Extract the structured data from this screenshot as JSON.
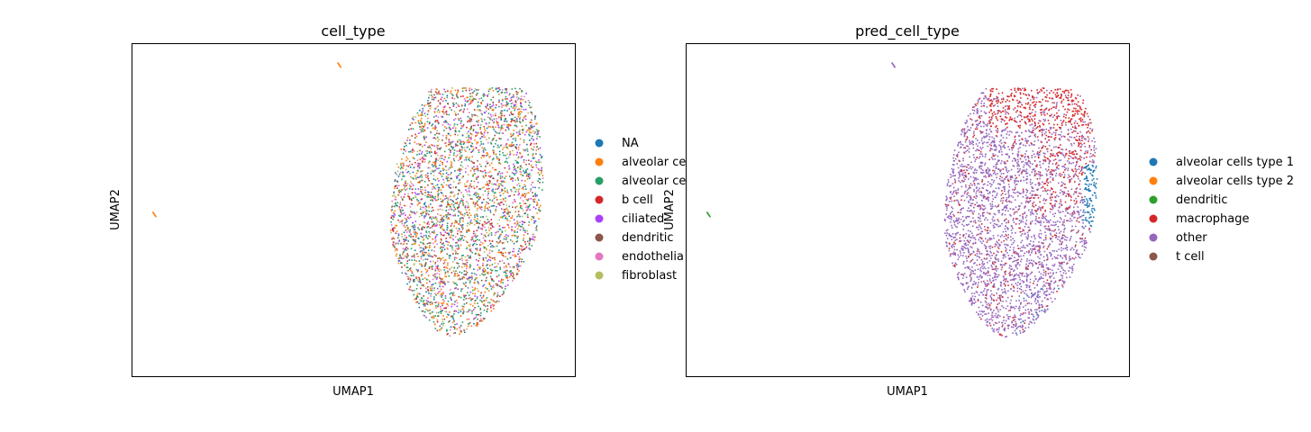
{
  "chart_data": [
    {
      "type": "scatter",
      "title": "cell_type",
      "xlabel": "UMAP1",
      "ylabel": "UMAP2",
      "grid": false,
      "legend_placement": "right",
      "legend": [
        {
          "label": "NA",
          "color": "#1f77b4"
        },
        {
          "label": "alveolar ce",
          "color": "#ff7f0e"
        },
        {
          "label": "alveolar ce",
          "color": "#279e68"
        },
        {
          "label": "b cell",
          "color": "#d62728"
        },
        {
          "label": "ciliated",
          "color": "#aa40fc"
        },
        {
          "label": "dendritic",
          "color": "#8c564b"
        },
        {
          "label": "endothelia",
          "color": "#e377c2"
        },
        {
          "label": "fibroblast",
          "color": "#b5bd61"
        }
      ],
      "cluster_palette": [
        "#ff7f0e",
        "#279e68",
        "#e377c2",
        "#ff7f0e",
        "#279e68",
        "#8c564b",
        "#1f77b4",
        "#b5bd61",
        "#d62728",
        "#aa40fc"
      ],
      "outliers": [
        {
          "x": 0.463,
          "y": 0.945,
          "color": "#ff7f0e"
        },
        {
          "x": 0.045,
          "y": 0.495,
          "color": "#ff7f0e"
        }
      ]
    },
    {
      "type": "scatter",
      "title": "pred_cell_type",
      "xlabel": "UMAP1",
      "ylabel": "UMAP2",
      "grid": false,
      "legend_placement": "right",
      "legend": [
        {
          "label": "alveolar cells type 1",
          "color": "#1f77b4"
        },
        {
          "label": "alveolar cells type 2",
          "color": "#ff7f0e"
        },
        {
          "label": "dendritic",
          "color": "#2ca02c"
        },
        {
          "label": "macrophage",
          "color": "#d62728"
        },
        {
          "label": "other",
          "color": "#9467bd"
        },
        {
          "label": "t cell",
          "color": "#8c564b"
        }
      ],
      "outliers": [
        {
          "x": 0.463,
          "y": 0.945,
          "color": "#9467bd"
        },
        {
          "x": 0.045,
          "y": 0.495,
          "color": "#2ca02c"
        }
      ]
    }
  ]
}
